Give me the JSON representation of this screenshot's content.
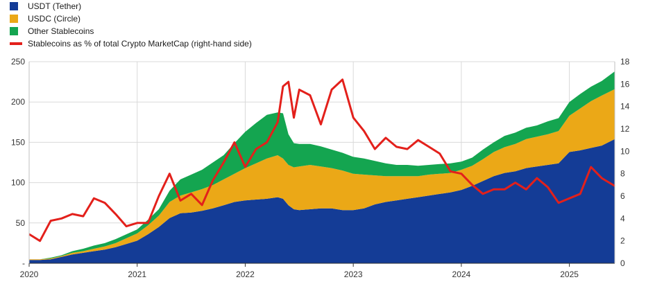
{
  "chart_data": {
    "type": "area",
    "legend_position": "top-left",
    "grid": true,
    "x_ticks": [
      "2020",
      "2021",
      "2022",
      "2023",
      "2024",
      "2025"
    ],
    "y_left_ticks": [
      "250",
      "200",
      "150",
      "100",
      "50",
      "-"
    ],
    "y_right_ticks": [
      "18",
      "16",
      "14",
      "12",
      "10",
      "8",
      "6",
      "4",
      "2",
      "0"
    ],
    "ylim_left": [
      0,
      250
    ],
    "ylim_right": [
      0,
      18
    ],
    "xlim": [
      2020.0,
      2025.42
    ],
    "x": [
      2020.0,
      2020.1,
      2020.2,
      2020.3,
      2020.4,
      2020.5,
      2020.6,
      2020.7,
      2020.8,
      2020.9,
      2021.0,
      2021.1,
      2021.2,
      2021.3,
      2021.4,
      2021.5,
      2021.6,
      2021.7,
      2021.8,
      2021.9,
      2022.0,
      2022.1,
      2022.2,
      2022.3,
      2022.35,
      2022.4,
      2022.45,
      2022.5,
      2022.6,
      2022.7,
      2022.8,
      2022.9,
      2023.0,
      2023.1,
      2023.2,
      2023.3,
      2023.4,
      2023.5,
      2023.6,
      2023.7,
      2023.8,
      2023.9,
      2024.0,
      2024.1,
      2024.2,
      2024.3,
      2024.4,
      2024.5,
      2024.6,
      2024.7,
      2024.8,
      2024.9,
      2025.0,
      2025.1,
      2025.2,
      2025.3,
      2025.42
    ],
    "series": [
      {
        "name": "USDT (Tether)",
        "color": "#143c96",
        "values": [
          4,
          4,
          5,
          8,
          11,
          13,
          15,
          17,
          20,
          24,
          28,
          36,
          45,
          56,
          62,
          63,
          65,
          68,
          72,
          76,
          78,
          79,
          80,
          82,
          80,
          72,
          67,
          66,
          67,
          68,
          68,
          66,
          66,
          68,
          73,
          76,
          78,
          80,
          82,
          84,
          86,
          88,
          91,
          96,
          102,
          108,
          112,
          114,
          118,
          120,
          122,
          124,
          138,
          140,
          143,
          146,
          154
        ]
      },
      {
        "name": "USDC (Circle)",
        "color": "#eba817",
        "values": [
          1,
          1,
          1,
          1,
          2,
          2,
          3,
          4,
          5,
          7,
          9,
          11,
          14,
          20,
          22,
          25,
          27,
          29,
          32,
          35,
          40,
          45,
          50,
          52,
          50,
          50,
          52,
          54,
          55,
          52,
          50,
          49,
          45,
          42,
          36,
          32,
          30,
          28,
          26,
          26,
          25,
          24,
          25,
          25,
          27,
          30,
          32,
          34,
          36,
          37,
          38,
          40,
          45,
          52,
          58,
          62,
          62
        ]
      },
      {
        "name": "Other Stablecoins",
        "color": "#14a550",
        "values": [
          0,
          0,
          1,
          1,
          2,
          3,
          4,
          4,
          5,
          5,
          5,
          7,
          8,
          14,
          20,
          22,
          24,
          28,
          30,
          38,
          45,
          50,
          54,
          53,
          56,
          38,
          30,
          28,
          26,
          25,
          23,
          22,
          21,
          20,
          18,
          16,
          14,
          14,
          13,
          12,
          12,
          12,
          10,
          10,
          12,
          12,
          14,
          14,
          14,
          14,
          16,
          16,
          17,
          18,
          18,
          18,
          22
        ]
      },
      {
        "name": "Stablecoins as % of total Crypto MarketCap (right-hand side)",
        "color": "#e3201b",
        "axis": "right",
        "values": [
          2.6,
          2.0,
          3.8,
          4.0,
          4.4,
          4.2,
          5.8,
          5.4,
          4.4,
          3.3,
          3.6,
          3.6,
          6.0,
          8.0,
          5.6,
          6.2,
          5.2,
          7.4,
          9.0,
          10.8,
          8.6,
          10.2,
          10.8,
          12.6,
          15.8,
          16.2,
          13.0,
          15.5,
          15.0,
          12.4,
          15.5,
          16.4,
          13.0,
          11.8,
          10.2,
          11.2,
          10.4,
          10.2,
          11.0,
          10.4,
          9.8,
          8.2,
          8.0,
          7.0,
          6.2,
          6.6,
          6.6,
          7.2,
          6.6,
          7.6,
          6.8,
          5.4,
          5.8,
          6.2,
          8.6,
          7.6,
          6.9
        ]
      }
    ]
  }
}
